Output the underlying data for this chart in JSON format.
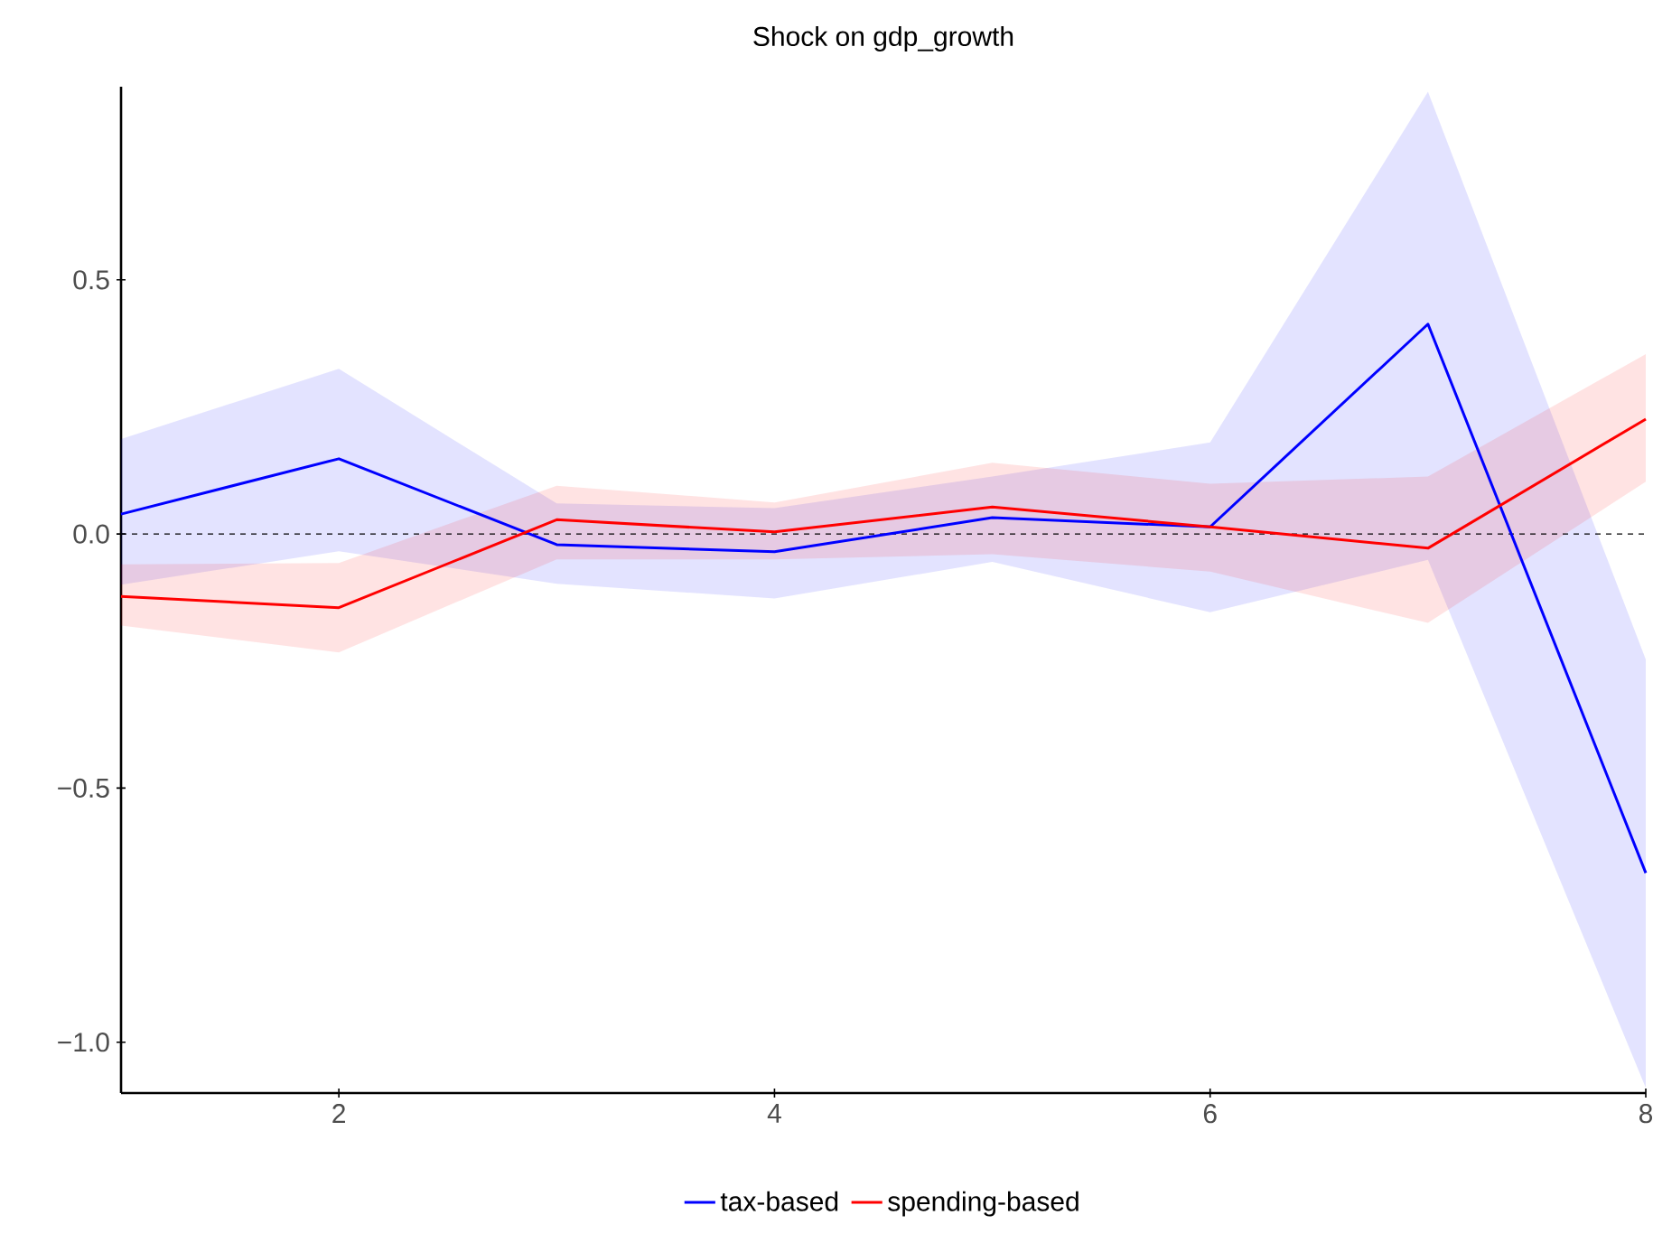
{
  "chart_data": {
    "type": "line",
    "title": "Shock on gdp_growth",
    "x": [
      1,
      2,
      3,
      4,
      5,
      6,
      7,
      8
    ],
    "series": [
      {
        "name": "tax-based",
        "color": "#0000ff",
        "values": [
          0.039,
          0.148,
          -0.021,
          -0.035,
          0.032,
          0.014,
          0.413,
          -0.667
        ],
        "lower": [
          -0.1,
          -0.034,
          -0.098,
          -0.127,
          -0.055,
          -0.154,
          -0.051,
          -1.09
        ],
        "upper": [
          0.187,
          0.325,
          0.06,
          0.051,
          0.113,
          0.18,
          0.87,
          -0.247
        ]
      },
      {
        "name": "spending-based",
        "color": "#ff0000",
        "values": [
          -0.123,
          -0.145,
          0.028,
          0.004,
          0.053,
          0.014,
          -0.028,
          0.226
        ],
        "lower": [
          -0.18,
          -0.233,
          -0.05,
          -0.05,
          -0.04,
          -0.074,
          -0.175,
          0.103
        ],
        "upper": [
          -0.06,
          -0.057,
          0.095,
          0.062,
          0.14,
          0.099,
          0.113,
          0.354
        ]
      }
    ],
    "xlim": [
      1,
      8
    ],
    "ylim": [
      -1.1,
      0.88
    ],
    "xticks": [
      2,
      4,
      6,
      8
    ],
    "yticks": [
      {
        "value": -1,
        "label": "−1.0"
      },
      {
        "value": -0.5,
        "label": "−0.5"
      },
      {
        "value": 0,
        "label": "0.0"
      },
      {
        "value": 0.5,
        "label": "0.5"
      }
    ],
    "ref_lines": [
      {
        "axis": "y",
        "value": 0,
        "color": "#000000",
        "line_style": "dashed"
      }
    ],
    "grid": false,
    "legend": "bottom",
    "line_style": "solid",
    "marker": "none"
  }
}
